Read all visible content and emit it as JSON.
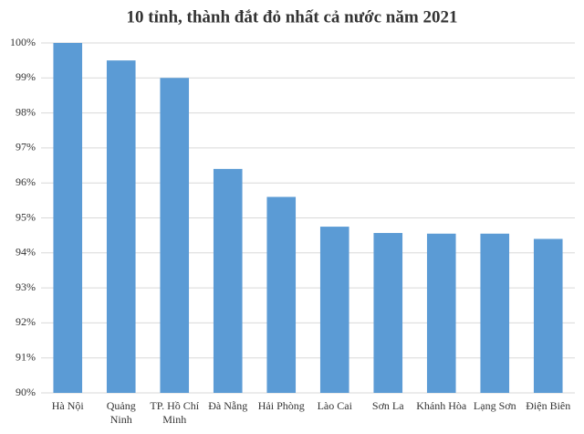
{
  "chart_data": {
    "type": "bar",
    "title": "10 tỉnh, thành đắt đỏ nhất cả nước năm 2021",
    "categories": [
      "Hà Nội",
      "Quảng Ninh",
      "TP. Hồ Chí Minh",
      "Đà Nẵng",
      "Hải Phòng",
      "Lào Cai",
      "Sơn La",
      "Khánh Hòa",
      "Lạng Sơn",
      "Điện Biên"
    ],
    "values": [
      100,
      99.5,
      99.0,
      96.4,
      95.6,
      94.75,
      94.57,
      94.55,
      94.55,
      94.4
    ],
    "color": "#5b9bd5",
    "ylim": [
      90,
      100
    ],
    "yticks": [
      {
        "value": 90,
        "label": "90%"
      },
      {
        "value": 91,
        "label": "91%"
      },
      {
        "value": 92,
        "label": "92%"
      },
      {
        "value": 93,
        "label": "93%"
      },
      {
        "value": 94,
        "label": "94%"
      },
      {
        "value": 95,
        "label": "95%"
      },
      {
        "value": 96,
        "label": "96%"
      },
      {
        "value": 97,
        "label": "97%"
      },
      {
        "value": 98,
        "label": "98%"
      },
      {
        "value": 99,
        "label": "99%"
      },
      {
        "value": 100,
        "label": "100%"
      }
    ],
    "grid": true
  }
}
